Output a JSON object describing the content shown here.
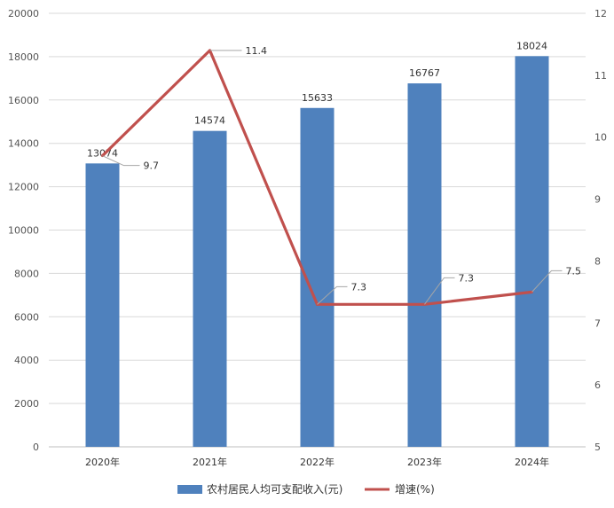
{
  "chart_data": {
    "type": "bar",
    "categories": [
      "2020年",
      "2021年",
      "2022年",
      "2023年",
      "2024年"
    ],
    "series": [
      {
        "name": "农村居民人均可支配收入(元)",
        "type": "bar",
        "axis": "left",
        "color": "#4F81BD",
        "values": [
          13074,
          14574,
          15633,
          16767,
          18024
        ],
        "labels": [
          "13074",
          "14574",
          "15633",
          "16767",
          "18024"
        ]
      },
      {
        "name": "增速(%)",
        "type": "line",
        "axis": "right",
        "color": "#C0504D",
        "values": [
          9.7,
          11.4,
          7.3,
          7.3,
          7.5
        ],
        "labels": [
          "9.7",
          "11.4",
          "7.3",
          "7.3",
          "7.5"
        ]
      }
    ],
    "y_left": {
      "min": 0,
      "max": 20000,
      "ticks": [
        "0",
        "2000",
        "4000",
        "6000",
        "8000",
        "10000",
        "12000",
        "14000",
        "16000",
        "18000",
        "20000"
      ]
    },
    "y_right": {
      "min": 5,
      "max": 12,
      "ticks": [
        "5",
        "6",
        "7",
        "8",
        "9",
        "10",
        "11",
        "12"
      ]
    },
    "grid": true,
    "legend": "bottom-center"
  }
}
